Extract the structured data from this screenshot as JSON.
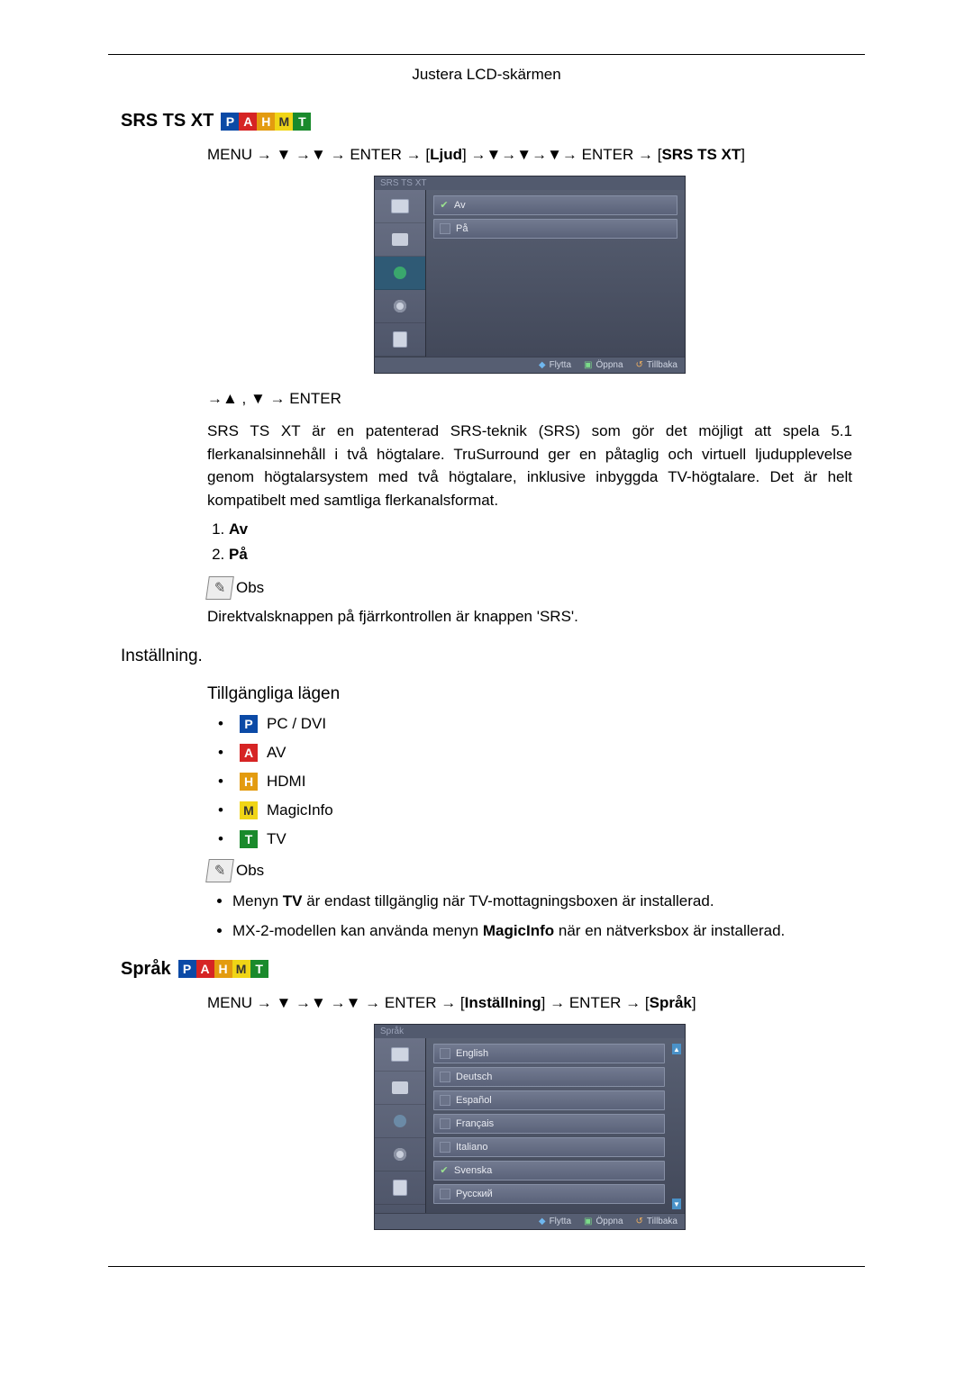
{
  "header": "Justera LCD-skärmen",
  "srs": {
    "title": "SRS TS XT",
    "nav_prefix": "MENU → ▼ →▼ → ENTER → [",
    "nav_mid_bold": "Ljud",
    "nav_mid2": "] →▼→▼→▼→ ENTER → [",
    "nav_end_bold": "SRS TS XT",
    "nav_end": "]",
    "osd_title": "SRS TS XT",
    "osd_av": "Av",
    "osd_pa": "På",
    "nav2": "→▲ , ▼ → ENTER",
    "body": "SRS TS XT är en patenterad SRS-teknik (SRS) som gör det möjligt att spela 5.1 flerkanalsinnehåll i två högtalare. TruSurround ger en påtaglig och virtuell ljudupplevelse genom högtalarsystem med två högtalare, inklusive inbyggda TV-högtalare. Det är helt kompatibelt med samtliga flerkanalsformat.",
    "li1": "Av",
    "li2": "På",
    "note_label": "Obs",
    "note_text": "Direktvalsknappen på fjärrkontrollen är knappen 'SRS'."
  },
  "inst": {
    "title": "Inställning.",
    "modes_title": "Tillgängliga lägen",
    "mode_p": "PC / DVI",
    "mode_a": "AV",
    "mode_h": "HDMI",
    "mode_m": "MagicInfo",
    "mode_t": "TV",
    "note_label": "Obs",
    "bullet1_a": "Menyn ",
    "bullet1_b": "TV",
    "bullet1_c": " är endast tillgänglig när TV-mottagningsboxen är installerad.",
    "bullet2_a": "MX-2-modellen kan använda menyn ",
    "bullet2_b": "MagicInfo",
    "bullet2_c": " när en nätverksbox är installerad."
  },
  "sprak": {
    "title": "Språk",
    "nav_prefix": "MENU → ▼ →▼ →▼ → ENTER → [",
    "nav_mid_bold": "Inställning",
    "nav_mid2": "] → ENTER → [",
    "nav_end_bold": "Språk",
    "nav_end": "]",
    "osd_title": "Språk",
    "langs": [
      "English",
      "Deutsch",
      "Español",
      "Français",
      "Italiano",
      "Svenska",
      "Русский"
    ],
    "selected_index": 5
  },
  "osd_footer": {
    "move": "Flytta",
    "open": "Öppna",
    "back": "Tillbaka"
  },
  "badges": {
    "P": {
      "bg": "#0b4aa6"
    },
    "A": {
      "bg": "#d62424"
    },
    "H": {
      "bg": "#e39b0f"
    },
    "M": {
      "bg": "#f0d516"
    },
    "T": {
      "bg": "#1a8a2c"
    }
  }
}
